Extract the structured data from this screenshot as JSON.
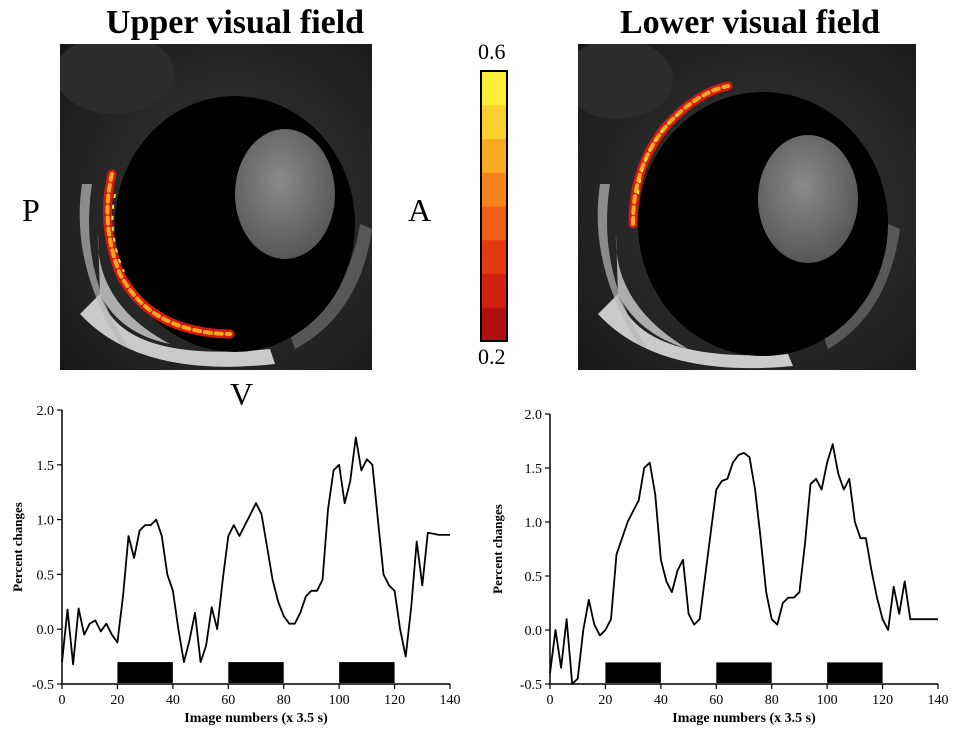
{
  "titles": {
    "upper": "Upper visual field",
    "lower": "Lower visual field"
  },
  "orientation": {
    "posterior": "P",
    "anterior": "A",
    "ventral": "V"
  },
  "colorbar": {
    "max": "0.6",
    "min": "0.2",
    "colors": [
      "#b01010",
      "#d22010",
      "#e43a12",
      "#ef5e16",
      "#f5841c",
      "#f9aa24",
      "#fcd030",
      "#ffef3a"
    ]
  },
  "chart_data": [
    {
      "type": "line",
      "panel": "upper visual field",
      "xlabel": "Image numbers (x 3.5 s)",
      "ylabel": "Percent changes",
      "xlim": [
        0,
        140
      ],
      "ylim": [
        -0.5,
        2.0
      ],
      "xticks": [
        "0",
        "20",
        "40",
        "60",
        "80",
        "100",
        "120",
        "140"
      ],
      "yticks": [
        "-0.5",
        "0.0",
        "0.5",
        "1.0",
        "1.5",
        "2.0"
      ],
      "x": [
        0,
        2,
        4,
        6,
        8,
        10,
        12,
        14,
        16,
        18,
        20,
        22,
        24,
        26,
        28,
        30,
        32,
        34,
        36,
        38,
        40,
        42,
        44,
        46,
        48,
        50,
        52,
        54,
        56,
        58,
        60,
        62,
        64,
        66,
        68,
        70,
        72,
        74,
        76,
        78,
        80,
        82,
        84,
        86,
        88,
        90,
        92,
        94,
        96,
        98,
        100,
        102,
        104,
        106,
        108,
        110,
        112,
        114,
        116,
        118,
        120,
        122,
        124,
        126,
        128,
        130,
        132,
        134,
        136,
        138,
        140
      ],
      "y": [
        -0.3,
        0.18,
        -0.32,
        0.19,
        -0.05,
        0.05,
        0.08,
        -0.02,
        0.05,
        -0.05,
        -0.12,
        0.3,
        0.85,
        0.65,
        0.9,
        0.95,
        0.95,
        1.0,
        0.85,
        0.5,
        0.35,
        0.0,
        -0.3,
        -0.1,
        0.15,
        -0.3,
        -0.15,
        0.2,
        0.0,
        0.45,
        0.85,
        0.95,
        0.85,
        0.95,
        1.05,
        1.15,
        1.05,
        0.75,
        0.45,
        0.25,
        0.12,
        0.05,
        0.05,
        0.15,
        0.3,
        0.35,
        0.35,
        0.45,
        1.1,
        1.45,
        1.5,
        1.15,
        1.35,
        1.75,
        1.45,
        1.55,
        1.5,
        1.0,
        0.5,
        0.4,
        0.35,
        0.0,
        -0.25,
        0.2,
        0.8,
        0.4,
        0.88,
        0.87,
        0.86,
        0.86,
        0.86
      ],
      "stimulus_blocks": [
        [
          20,
          40
        ],
        [
          60,
          80
        ],
        [
          100,
          120
        ]
      ]
    },
    {
      "type": "line",
      "panel": "lower visual field",
      "xlabel": "Image numbers (x 3.5 s)",
      "ylabel": "Percent changes",
      "xlim": [
        0,
        140
      ],
      "ylim": [
        -0.5,
        2.0
      ],
      "xticks": [
        "0",
        "20",
        "40",
        "60",
        "80",
        "100",
        "120",
        "140"
      ],
      "yticks": [
        "-0.5",
        "0.0",
        "0.5",
        "1.0",
        "1.5",
        "2.0"
      ],
      "x": [
        0,
        2,
        4,
        6,
        8,
        10,
        12,
        14,
        16,
        18,
        20,
        22,
        24,
        26,
        28,
        30,
        32,
        34,
        36,
        38,
        40,
        42,
        44,
        46,
        48,
        50,
        52,
        54,
        56,
        58,
        60,
        62,
        64,
        66,
        68,
        70,
        72,
        74,
        76,
        78,
        80,
        82,
        84,
        86,
        88,
        90,
        92,
        94,
        96,
        98,
        100,
        102,
        104,
        106,
        108,
        110,
        112,
        114,
        116,
        118,
        120,
        122,
        124,
        126,
        128,
        130,
        132,
        134,
        136,
        138,
        140
      ],
      "y": [
        -0.4,
        0.0,
        -0.35,
        0.1,
        -0.5,
        -0.45,
        0.0,
        0.28,
        0.05,
        -0.05,
        0.0,
        0.1,
        0.7,
        0.85,
        1.0,
        1.1,
        1.2,
        1.5,
        1.55,
        1.25,
        0.65,
        0.45,
        0.35,
        0.55,
        0.65,
        0.15,
        0.05,
        0.1,
        0.5,
        0.9,
        1.3,
        1.38,
        1.4,
        1.55,
        1.62,
        1.64,
        1.6,
        1.3,
        0.85,
        0.35,
        0.1,
        0.05,
        0.25,
        0.3,
        0.3,
        0.35,
        0.8,
        1.35,
        1.4,
        1.3,
        1.55,
        1.72,
        1.45,
        1.3,
        1.4,
        1.0,
        0.85,
        0.85,
        0.55,
        0.3,
        0.1,
        0.0,
        0.4,
        0.15,
        0.45,
        0.1,
        0.1,
        0.1,
        0.1,
        0.1,
        0.1
      ],
      "stimulus_blocks": [
        [
          20,
          40
        ],
        [
          60,
          80
        ],
        [
          100,
          120
        ]
      ]
    }
  ]
}
